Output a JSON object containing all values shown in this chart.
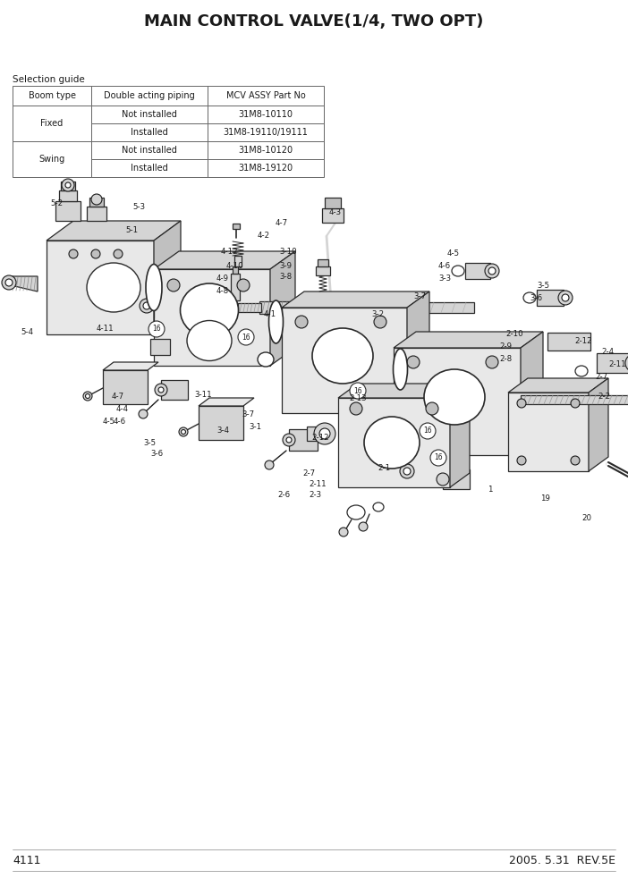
{
  "title": "MAIN CONTROL VALVE(1/4, TWO OPT)",
  "page_number": "4111",
  "date_rev": "2005. 5.31  REV.5E",
  "selection_guide_label": "Selection guide",
  "table_headers": [
    "Boom type",
    "Double acting piping",
    "MCV ASSY Part No"
  ],
  "table_rows": [
    [
      "Fixed",
      "Not installed",
      "31M8-10110"
    ],
    [
      "Fixed",
      "Installed",
      "31M8-19110/19111"
    ],
    [
      "Swing",
      "Not installed",
      "31M8-10120"
    ],
    [
      "Swing",
      "Installed",
      "31M8-19120"
    ]
  ],
  "bg_color": "#ffffff",
  "text_color": "#1a1a1a",
  "title_fontsize": 13,
  "footer_fontsize": 9
}
